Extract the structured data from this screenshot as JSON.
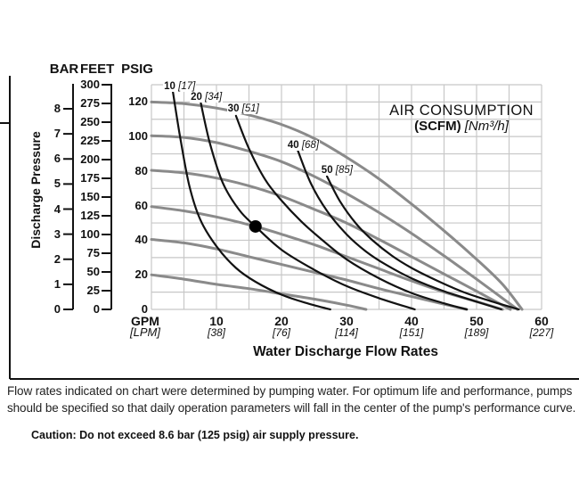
{
  "figure": {
    "column_headers": {
      "bar": "BAR",
      "feet": "FEET",
      "psig": "PSIG"
    },
    "y_axis_title": "Discharge Pressure",
    "x_unit_primary": "GPM",
    "x_unit_secondary": "[LPM]",
    "x_axis_title": "Water Discharge Flow Rates"
  },
  "chart_data": {
    "type": "line",
    "title": "AIR CONSUMPTION",
    "subtitle_bold": "(SCFM)",
    "subtitle_italic": "[Nm³/h]",
    "x_axis": {
      "unit": "GPM",
      "unit_alt": "[LPM]",
      "label": "Water Discharge Flow Rates",
      "range_gpm": [
        0,
        60
      ],
      "grid_step_gpm": 5,
      "ticks": [
        {
          "gpm": "10",
          "lpm": "[38]"
        },
        {
          "gpm": "20",
          "lpm": "[76]"
        },
        {
          "gpm": "30",
          "lpm": "[114]"
        },
        {
          "gpm": "40",
          "lpm": "[151]"
        },
        {
          "gpm": "50",
          "lpm": "[189]"
        },
        {
          "gpm": "60",
          "lpm": "[227]"
        }
      ]
    },
    "y_axis": {
      "label": "Discharge Pressure",
      "range_psig": [
        0,
        130
      ],
      "grid_step_psig": 10,
      "bar_ticks": [
        "8",
        "7",
        "6",
        "5",
        "4",
        "3",
        "2",
        "1",
        "0"
      ],
      "bar_values": [
        8,
        7,
        6,
        5,
        4,
        3,
        2,
        1,
        0
      ],
      "feet_ticks": [
        "300",
        "275",
        "250",
        "225",
        "200",
        "175",
        "150",
        "125",
        "100",
        "75",
        "50",
        "25",
        "0"
      ],
      "feet_values": [
        300,
        275,
        250,
        225,
        200,
        175,
        150,
        125,
        100,
        75,
        50,
        25,
        0
      ],
      "psig_ticks": [
        "120",
        "100",
        "80",
        "60",
        "40",
        "20",
        "0"
      ],
      "psig_values": [
        120,
        100,
        80,
        60,
        40,
        20,
        0
      ]
    },
    "pump_curves": [
      {
        "name": "pump-curve-120psig",
        "points": [
          [
            0,
            120
          ],
          [
            5,
            119
          ],
          [
            10,
            116.5
          ],
          [
            15,
            112.5
          ],
          [
            20,
            107
          ],
          [
            25,
            99
          ],
          [
            30,
            88
          ],
          [
            35,
            75.5
          ],
          [
            40,
            61
          ],
          [
            45,
            45.5
          ],
          [
            50,
            29
          ],
          [
            54,
            14.5
          ],
          [
            57,
            0
          ]
        ]
      },
      {
        "name": "pump-curve-100psig",
        "points": [
          [
            0,
            100.5
          ],
          [
            5,
            99.5
          ],
          [
            10,
            96.5
          ],
          [
            15,
            91.5
          ],
          [
            20,
            85.5
          ],
          [
            25,
            77
          ],
          [
            30,
            67
          ],
          [
            35,
            56
          ],
          [
            40,
            44
          ],
          [
            45,
            31
          ],
          [
            50,
            17.5
          ],
          [
            56.3,
            0
          ]
        ]
      },
      {
        "name": "pump-curve-80psig",
        "points": [
          [
            0,
            80.5
          ],
          [
            5,
            79
          ],
          [
            10,
            76
          ],
          [
            15,
            71.5
          ],
          [
            20,
            65.5
          ],
          [
            25,
            58
          ],
          [
            30,
            50
          ],
          [
            35,
            40.5
          ],
          [
            40,
            30.5
          ],
          [
            45,
            20.5
          ],
          [
            50,
            10.5
          ],
          [
            55.2,
            0
          ]
        ]
      },
      {
        "name": "pump-curve-60psig",
        "points": [
          [
            0,
            59.5
          ],
          [
            5,
            57
          ],
          [
            10,
            53.5
          ],
          [
            16,
            48
          ],
          [
            20,
            43.5
          ],
          [
            25,
            37.5
          ],
          [
            30,
            30.5
          ],
          [
            35,
            23.5
          ],
          [
            40,
            16.5
          ],
          [
            45,
            10
          ],
          [
            50,
            4.5
          ],
          [
            54,
            0
          ]
        ]
      },
      {
        "name": "pump-curve-40psig",
        "points": [
          [
            0,
            40.5
          ],
          [
            5,
            38.5
          ],
          [
            10,
            35
          ],
          [
            15,
            30.5
          ],
          [
            20,
            26
          ],
          [
            25,
            21.5
          ],
          [
            30,
            17
          ],
          [
            35,
            12
          ],
          [
            40,
            7.5
          ],
          [
            45,
            3
          ],
          [
            48.5,
            0
          ]
        ]
      },
      {
        "name": "pump-curve-20psig",
        "points": [
          [
            0,
            20
          ],
          [
            5,
            17.5
          ],
          [
            10,
            14.5
          ],
          [
            15,
            12
          ],
          [
            20,
            9
          ],
          [
            25,
            6
          ],
          [
            30,
            2.5
          ],
          [
            33,
            0
          ]
        ]
      }
    ],
    "air_curves": [
      {
        "scfm": "10",
        "nm3h": "[17]",
        "label_at": [
          1.8,
          128.5
        ],
        "points": [
          [
            3.3,
            126
          ],
          [
            4.4,
            100
          ],
          [
            5.8,
            72
          ],
          [
            7.5,
            52
          ],
          [
            10,
            36.5
          ],
          [
            13,
            24
          ],
          [
            16,
            16
          ],
          [
            20,
            8.5
          ],
          [
            24,
            3.5
          ],
          [
            27.5,
            0
          ]
        ]
      },
      {
        "scfm": "20",
        "nm3h": "[34]",
        "label_at": [
          5.9,
          122.5
        ],
        "points": [
          [
            7.5,
            121
          ],
          [
            9,
            96
          ],
          [
            11,
            73
          ],
          [
            13.5,
            57.5
          ],
          [
            16,
            48
          ],
          [
            20,
            34.5
          ],
          [
            25,
            23
          ],
          [
            30,
            13.5
          ],
          [
            35,
            6.5
          ],
          [
            40.5,
            0
          ]
        ]
      },
      {
        "scfm": "30",
        "nm3h": "[51]",
        "label_at": [
          11.6,
          115.5
        ],
        "points": [
          [
            13,
            112
          ],
          [
            15,
            93
          ],
          [
            17.5,
            75
          ],
          [
            20,
            63
          ],
          [
            23,
            51
          ],
          [
            26,
            41
          ],
          [
            30,
            29
          ],
          [
            35,
            18
          ],
          [
            40,
            9.5
          ],
          [
            45,
            3.5
          ],
          [
            48.5,
            0
          ]
        ]
      },
      {
        "scfm": "40",
        "nm3h": "[68]",
        "label_at": [
          20.8,
          94.5
        ],
        "points": [
          [
            22.5,
            92
          ],
          [
            24.5,
            73
          ],
          [
            27,
            57
          ],
          [
            30,
            43.5
          ],
          [
            33,
            33.5
          ],
          [
            36,
            26
          ],
          [
            40,
            18
          ],
          [
            45,
            10.5
          ],
          [
            50,
            4.5
          ],
          [
            53.8,
            0
          ]
        ]
      },
      {
        "scfm": "50",
        "nm3h": "[85]",
        "label_at": [
          26,
          80
        ],
        "points": [
          [
            27,
            77
          ],
          [
            29,
            62.5
          ],
          [
            31.5,
            49.5
          ],
          [
            34,
            40
          ],
          [
            37,
            31
          ],
          [
            40,
            24
          ],
          [
            44,
            16.5
          ],
          [
            48,
            10
          ],
          [
            52,
            5
          ],
          [
            56.5,
            0
          ]
        ]
      }
    ],
    "operating_point": {
      "gpm": 16,
      "psig": 48
    },
    "colors": {
      "pump_curve": "#8a8a8a",
      "air_curve": "#121212",
      "grid": "#c7c7c7",
      "axis": "#111111",
      "dot": "#000000"
    }
  },
  "footer": {
    "line1": "Flow rates indicated on chart were determined by pumping water. For optimum life and performance, pumps",
    "line2": "should be specified so that daily operation parameters will fall in the center of the pump's performance curve.",
    "caution": "Caution: Do not exceed 8.6 bar (125 psig) air supply pressure."
  }
}
